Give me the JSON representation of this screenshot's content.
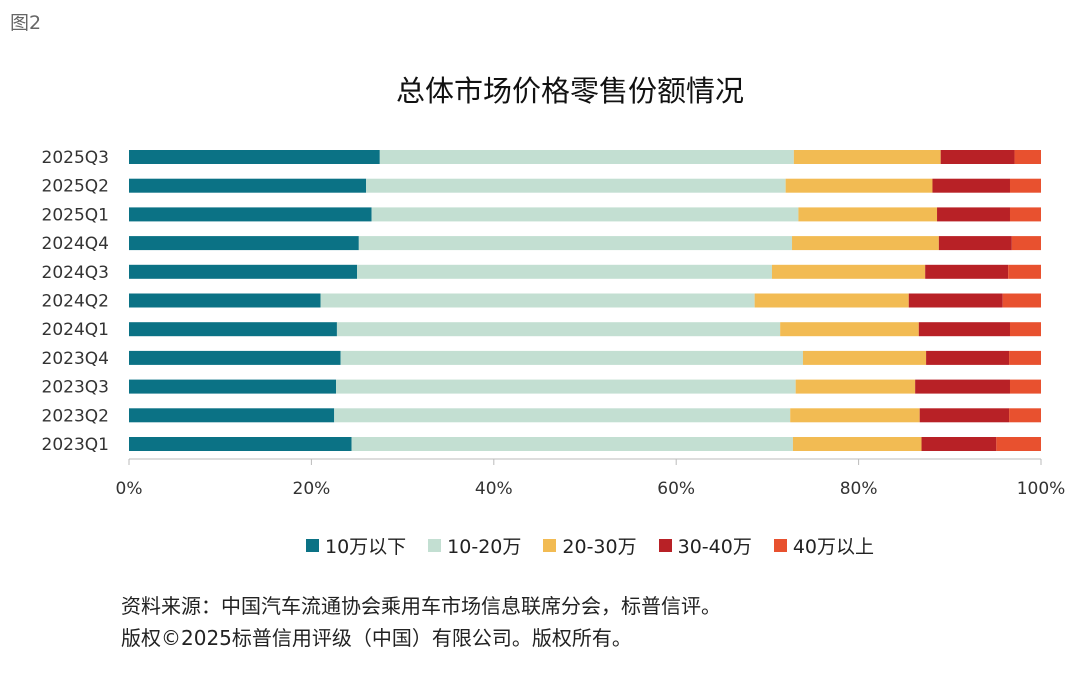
{
  "figure_label": "图2",
  "chart_data": {
    "type": "bar",
    "orientation": "horizontal",
    "stacked": true,
    "title": "总体市场价格零售份额情况",
    "categories": [
      "2025Q3",
      "2025Q2",
      "2025Q1",
      "2024Q4",
      "2024Q3",
      "2024Q2",
      "2024Q1",
      "2023Q4",
      "2023Q3",
      "2023Q2",
      "2023Q1"
    ],
    "series": [
      {
        "name": "10万以下",
        "color": "#0b7285",
        "values": [
          27.5,
          26.0,
          26.6,
          25.2,
          25.0,
          21.0,
          22.8,
          23.2,
          22.7,
          22.5,
          24.4
        ]
      },
      {
        "name": "10-20万",
        "color": "#c3dfd2",
        "values": [
          45.4,
          46.0,
          46.8,
          47.5,
          45.5,
          47.6,
          48.6,
          50.7,
          50.4,
          50.0,
          48.4
        ]
      },
      {
        "name": "20-30万",
        "color": "#f2bb53",
        "values": [
          16.1,
          16.1,
          15.2,
          16.1,
          16.8,
          16.9,
          15.2,
          13.5,
          13.1,
          14.2,
          14.1
        ]
      },
      {
        "name": "30-40万",
        "color": "#b82126",
        "values": [
          8.1,
          8.5,
          8.0,
          8.0,
          9.1,
          10.3,
          10.0,
          9.1,
          10.4,
          9.8,
          8.2
        ]
      },
      {
        "name": "40万以上",
        "color": "#e8512f",
        "values": [
          2.9,
          3.4,
          3.4,
          3.2,
          3.6,
          4.2,
          3.4,
          3.5,
          3.4,
          3.5,
          4.9
        ]
      }
    ],
    "xlim": [
      0,
      100
    ],
    "xticks": [
      "0%",
      "20%",
      "40%",
      "60%",
      "80%",
      "100%"
    ],
    "grid": false,
    "legend_position": "bottom"
  },
  "source_lines": [
    "资料来源：中国汽车流通协会乘用车市场信息联席分会，标普信评。",
    "版权©2025标普信用评级（中国）有限公司。版权所有。"
  ]
}
